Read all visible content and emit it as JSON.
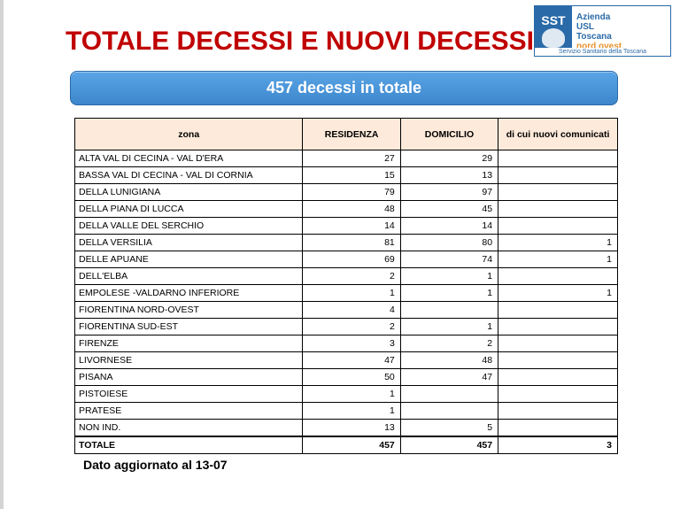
{
  "logo": {
    "sst": "SST",
    "l1": "Azienda",
    "l2": "USL",
    "l3": "Toscana",
    "l4": "nord ovest",
    "footer": "Servizio Sanitario della Toscana"
  },
  "title": "TOTALE DECESSI E NUOVI DECESSI",
  "banner": "457 decessi in totale",
  "columns": {
    "zona": "zona",
    "residenza": "RESIDENZA",
    "domicilio": "DOMICILIO",
    "nuovi": "di cui nuovi comunicati"
  },
  "rows": [
    {
      "zone": "ALTA VAL DI CECINA - VAL D'ERA",
      "res": "27",
      "dom": "29",
      "new": ""
    },
    {
      "zone": "BASSA VAL DI CECINA - VAL DI CORNIA",
      "res": "15",
      "dom": "13",
      "new": ""
    },
    {
      "zone": "DELLA LUNIGIANA",
      "res": "79",
      "dom": "97",
      "new": ""
    },
    {
      "zone": "DELLA PIANA DI LUCCA",
      "res": "48",
      "dom": "45",
      "new": ""
    },
    {
      "zone": "DELLA VALLE DEL SERCHIO",
      "res": "14",
      "dom": "14",
      "new": ""
    },
    {
      "zone": "DELLA VERSILIA",
      "res": "81",
      "dom": "80",
      "new": "1"
    },
    {
      "zone": "DELLE APUANE",
      "res": "69",
      "dom": "74",
      "new": "1"
    },
    {
      "zone": "DELL'ELBA",
      "res": "2",
      "dom": "1",
      "new": ""
    },
    {
      "zone": "EMPOLESE -VALDARNO INFERIORE",
      "res": "1",
      "dom": "1",
      "new": "1"
    },
    {
      "zone": "FIORENTINA NORD-OVEST",
      "res": "4",
      "dom": "",
      "new": ""
    },
    {
      "zone": "FIORENTINA SUD-EST",
      "res": "2",
      "dom": "1",
      "new": ""
    },
    {
      "zone": "FIRENZE",
      "res": "3",
      "dom": "2",
      "new": ""
    },
    {
      "zone": "LIVORNESE",
      "res": "47",
      "dom": "48",
      "new": ""
    },
    {
      "zone": "PISANA",
      "res": "50",
      "dom": "47",
      "new": ""
    },
    {
      "zone": "PISTOIESE",
      "res": "1",
      "dom": "",
      "new": ""
    },
    {
      "zone": "PRATESE",
      "res": "1",
      "dom": "",
      "new": ""
    },
    {
      "zone": "NON IND.",
      "res": "13",
      "dom": "5",
      "new": ""
    }
  ],
  "total": {
    "label": "TOTALE",
    "res": "457",
    "dom": "457",
    "new": "3"
  },
  "footer": "Dato aggiornato al 13-07",
  "colors": {
    "title": "#c00000",
    "banner_top": "#5aa5e6",
    "banner_bottom": "#3d86cc",
    "header_bg": "#fdeada",
    "logo_blue": "#2a6aa8",
    "logo_orange": "#e8922c"
  }
}
